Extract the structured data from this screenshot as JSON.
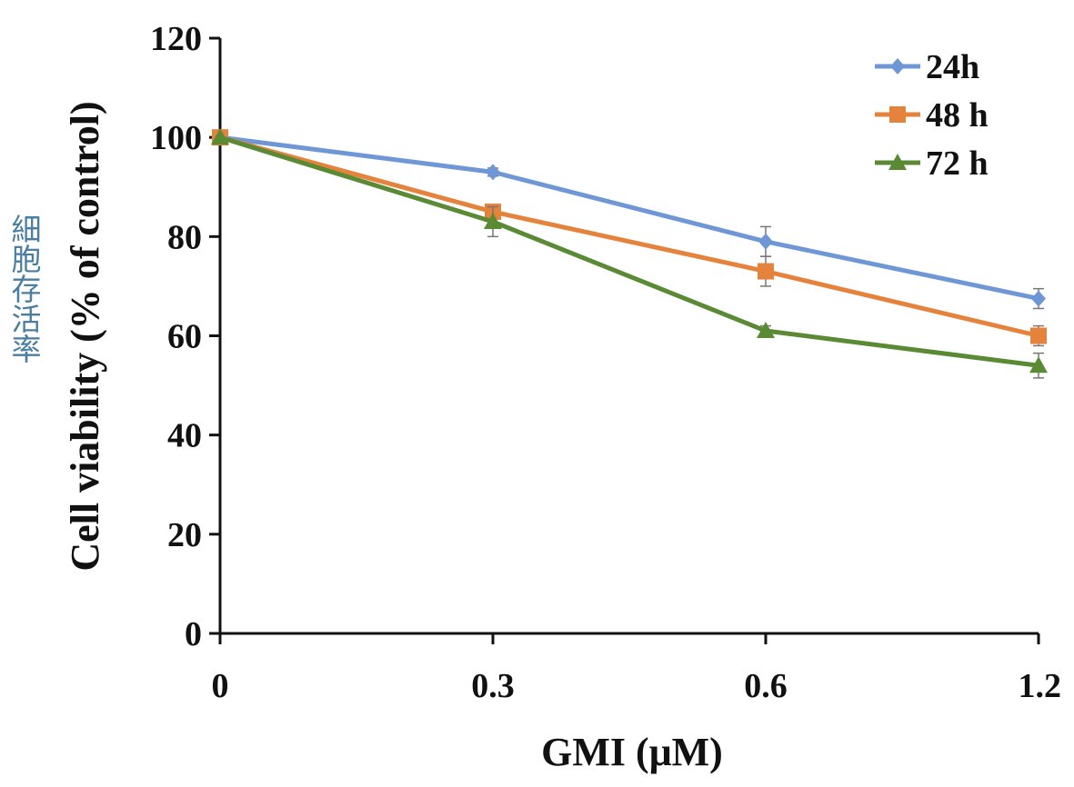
{
  "side_label": "細胞存活率",
  "chart_data": {
    "type": "line",
    "x": [
      "0",
      "0.3",
      "0.6",
      "1.2"
    ],
    "xlabel": "GMI (μM)",
    "ylabel": "Cell viability (% of control)",
    "ylim": [
      0,
      120
    ],
    "yticks": [
      "0",
      "20",
      "40",
      "60",
      "80",
      "100",
      "120"
    ],
    "grid": false,
    "legend": "top-right",
    "series": [
      {
        "name": "24h",
        "color": "#6f97d6",
        "marker": "diamond",
        "values": [
          100,
          93,
          79,
          67.5
        ],
        "errors": [
          0,
          0.8,
          3,
          2
        ]
      },
      {
        "name": "48 h",
        "color": "#e5823b",
        "marker": "square",
        "values": [
          100,
          85,
          73,
          60
        ],
        "errors": [
          0,
          1,
          3,
          2
        ]
      },
      {
        "name": "72 h",
        "color": "#5b8a35",
        "marker": "triangle",
        "values": [
          100,
          83,
          61,
          54
        ],
        "errors": [
          0,
          3,
          1,
          2.5
        ]
      }
    ]
  }
}
